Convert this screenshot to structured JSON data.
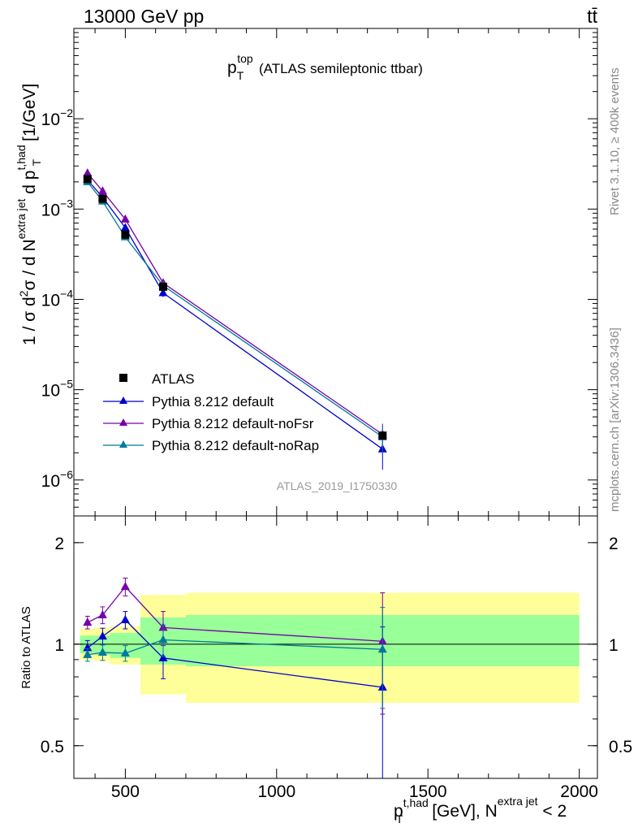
{
  "header": {
    "left_label": "13000 GeV pp",
    "right_label": "tt̄"
  },
  "side_labels": {
    "rivet": "Rivet 3.1.10, ≥ 400k events",
    "mcplots": "mcplots.cern.ch [arXiv:1306.3436]"
  },
  "watermark": "ATLAS_2019_I1750330",
  "colors": {
    "data": "#000000",
    "default": "#0000cc",
    "noFsr": "#7700aa",
    "noRap": "#007a99",
    "band_inner": "#99ff99",
    "band_outer": "#ffff99"
  },
  "chart_data": [
    {
      "type": "line",
      "title": "p_T^top (ATLAS semileptonic ttbar)",
      "title_parts": {
        "main": "p",
        "sub": "T",
        "sup": "top",
        "rest": "(ATLAS semileptonic ttbar)"
      },
      "ylabel": "1 / σ d²σ / d N^{extra jet} d p_T^{t,had} [1/GeV]",
      "ylabel_parts": {
        "a": "1 / σ d",
        "b": "2",
        "c": "σ /  d N",
        "d": "extra jet",
        "e": " d p",
        "f": "t,had",
        "g": "T",
        "h": " [1/GeV]"
      },
      "yscale": "log",
      "ylim": [
        4e-07,
        0.1
      ],
      "xlim": [
        330,
        2060
      ],
      "yticks": [
        {
          "v": 1e-06,
          "base": "10",
          "exp": "−6"
        },
        {
          "v": 1e-05,
          "base": "10",
          "exp": "−5"
        },
        {
          "v": 0.0001,
          "base": "10",
          "exp": "−4"
        },
        {
          "v": 0.001,
          "base": "10",
          "exp": "−3"
        },
        {
          "v": 0.01,
          "base": "10",
          "exp": "−2"
        }
      ],
      "legend": {
        "position": "lower-left",
        "entries": [
          {
            "key": "data",
            "label": "ATLAS"
          },
          {
            "key": "default",
            "label": "Pythia 8.212 default"
          },
          {
            "key": "noFsr",
            "label": "Pythia 8.212 default-noFsr"
          },
          {
            "key": "noRap",
            "label": "Pythia 8.212 default-noRap"
          }
        ]
      },
      "data": {
        "name": "ATLAS",
        "x": [
          375,
          425,
          500,
          625,
          1350
        ],
        "y": [
          0.00215,
          0.0013,
          0.00052,
          0.000138,
          3.1e-06
        ]
      },
      "series": [
        {
          "key": "default",
          "name": "Pythia 8.212 default",
          "x": [
            375,
            425,
            500,
            625,
            1350
          ],
          "y": [
            0.0021,
            0.00135,
            0.00062,
            0.000118,
            2.2e-06
          ],
          "err": [
            0.0001,
            7e-05,
            4e-05,
            1.2e-05,
            9e-07
          ]
        },
        {
          "key": "noFsr",
          "name": "Pythia 8.212 default-noFsr",
          "x": [
            375,
            425,
            500,
            625,
            1350
          ],
          "y": [
            0.0025,
            0.00158,
            0.00077,
            0.000152,
            3.2e-06
          ],
          "err": [
            0.0001,
            7e-05,
            4e-05,
            1.5e-05,
            1e-06
          ]
        },
        {
          "key": "noRap",
          "name": "Pythia 8.212 default-noRap",
          "x": [
            375,
            425,
            500,
            625,
            1350
          ],
          "y": [
            0.002,
            0.00122,
            0.00049,
            0.000142,
            3e-06
          ],
          "err": [
            0.0001,
            6e-05,
            3e-05,
            1.4e-05,
            1e-06
          ]
        }
      ]
    },
    {
      "type": "line",
      "title": "",
      "xlabel": "p_T^{t,had} [GeV], N^{extra jet} < 2",
      "xlabel_parts": {
        "a": "p",
        "b": "t,had",
        "c": "T",
        "d": " [GeV], N",
        "e": "extra jet",
        "f": " < 2"
      },
      "ylabel": "Ratio to ATLAS",
      "yscale": "log",
      "ylim": [
        0.4,
        2.4
      ],
      "xlim": [
        330,
        2060
      ],
      "xticks": [
        500,
        1000,
        1500,
        2000
      ],
      "yticks": [
        {
          "v": 0.5,
          "label": "0.5"
        },
        {
          "v": 1,
          "label": "1"
        },
        {
          "v": 2,
          "label": "2"
        }
      ],
      "bins": [
        {
          "lo": 350,
          "hi": 400,
          "inner": [
            0.94,
            1.06
          ],
          "outer": [
            0.9,
            1.11
          ]
        },
        {
          "lo": 400,
          "hi": 450,
          "inner": [
            0.93,
            1.06
          ],
          "outer": [
            0.89,
            1.12
          ]
        },
        {
          "lo": 450,
          "hi": 550,
          "inner": [
            0.91,
            1.08
          ],
          "outer": [
            0.87,
            1.13
          ]
        },
        {
          "lo": 550,
          "hi": 700,
          "inner": [
            0.87,
            1.2
          ],
          "outer": [
            0.71,
            1.4
          ]
        },
        {
          "lo": 700,
          "hi": 2000,
          "inner": [
            0.86,
            1.22
          ],
          "outer": [
            0.67,
            1.42
          ]
        }
      ],
      "series": [
        {
          "key": "default",
          "name": "Pythia 8.212 default",
          "x": [
            375,
            425,
            500,
            625,
            1350
          ],
          "y": [
            0.975,
            1.055,
            1.18,
            0.91,
            0.745
          ],
          "err": [
            0.05,
            0.06,
            0.07,
            0.12,
            0.38
          ]
        },
        {
          "key": "noFsr",
          "name": "Pythia 8.212 default-noFsr",
          "x": [
            375,
            425,
            500,
            625,
            1350
          ],
          "y": [
            1.16,
            1.22,
            1.48,
            1.12,
            1.02
          ],
          "err": [
            0.05,
            0.07,
            0.09,
            0.13,
            0.4
          ]
        },
        {
          "key": "noRap",
          "name": "Pythia 8.212 default-noRap",
          "x": [
            375,
            425,
            500,
            625,
            1350
          ],
          "y": [
            0.93,
            0.945,
            0.94,
            1.03,
            0.965
          ],
          "err": [
            0.04,
            0.05,
            0.05,
            0.11,
            0.32
          ]
        }
      ]
    }
  ]
}
